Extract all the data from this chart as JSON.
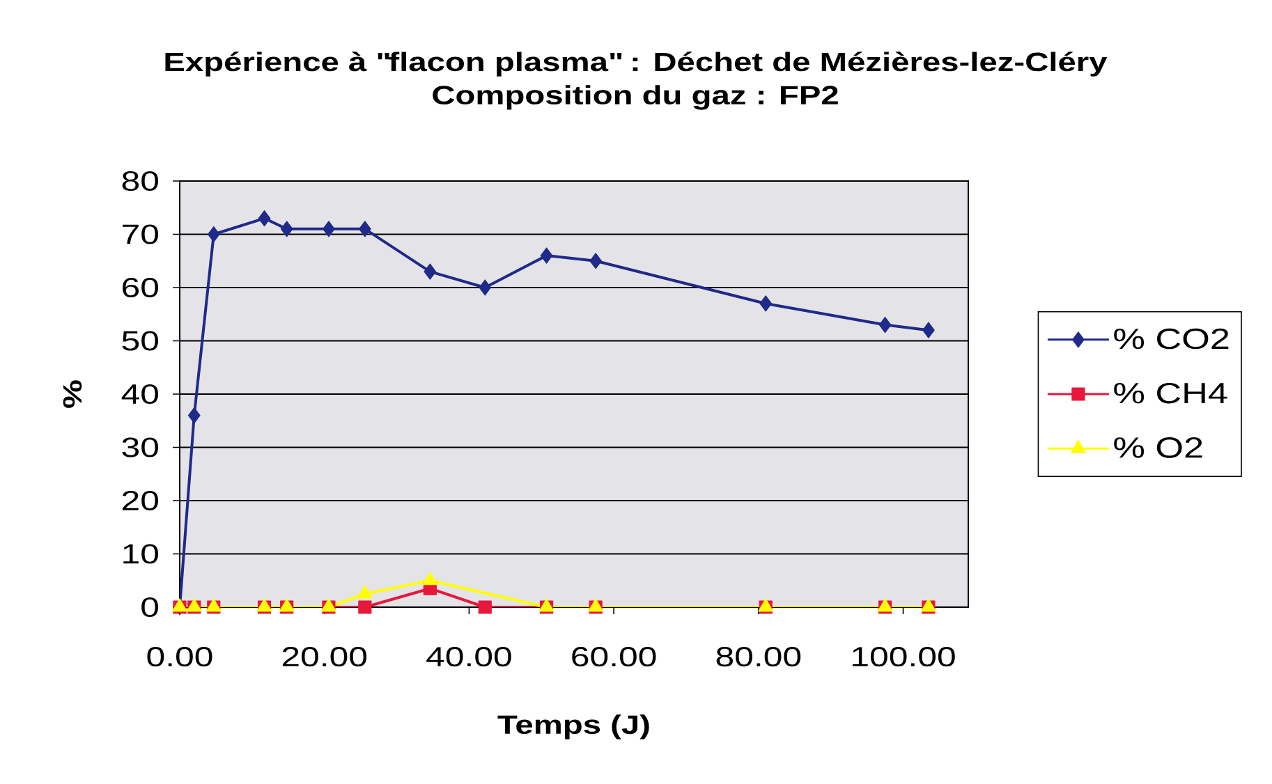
{
  "chart_data": {
    "type": "line",
    "title": "Expérience à \"flacon plasma\" : Déchet de Mézières-lez-Cléry",
    "subtitle": "Composition du gaz : FP2",
    "xlabel": "Temps (J)",
    "ylabel": "%",
    "x": [
      0,
      2,
      4.7,
      11.7,
      14.8,
      20.6,
      25.6,
      34.6,
      42.2,
      50.7,
      57.5,
      81,
      97.5,
      103.5
    ],
    "series": [
      {
        "name": "% CO2",
        "color": "#1f2a8a",
        "marker": "diamond",
        "values": [
          0,
          36,
          70,
          73,
          71,
          71,
          71,
          63,
          60,
          66,
          65,
          57,
          53,
          52
        ]
      },
      {
        "name": "% CH4",
        "color": "#e8173c",
        "marker": "square",
        "values": [
          0,
          0,
          0,
          0,
          0,
          0,
          0,
          3.5,
          0,
          0,
          0,
          0,
          0,
          0
        ]
      },
      {
        "name": "% O2",
        "color": "#ffff00",
        "marker": "triangle",
        "x": [
          0,
          2,
          4.7,
          11.7,
          14.8,
          20.6,
          25.6,
          34.6,
          50.7,
          57.5,
          81,
          97.5,
          103.5
        ],
        "values": [
          0,
          0,
          0,
          0,
          0,
          0,
          2.5,
          5,
          0,
          0,
          0,
          0,
          0
        ]
      }
    ],
    "xlim": [
      0,
      109
    ],
    "ylim": [
      0,
      80
    ],
    "xticks": [
      {
        "value": 0,
        "label": "0.00"
      },
      {
        "value": 20,
        "label": "20.00"
      },
      {
        "value": 40,
        "label": "40.00"
      },
      {
        "value": 60,
        "label": "60.00"
      },
      {
        "value": 80,
        "label": "80.00"
      },
      {
        "value": 100,
        "label": "100.00"
      }
    ],
    "yticks": [
      0,
      10,
      20,
      30,
      40,
      50,
      60,
      70,
      80
    ],
    "grid": "y",
    "legend": "right"
  }
}
